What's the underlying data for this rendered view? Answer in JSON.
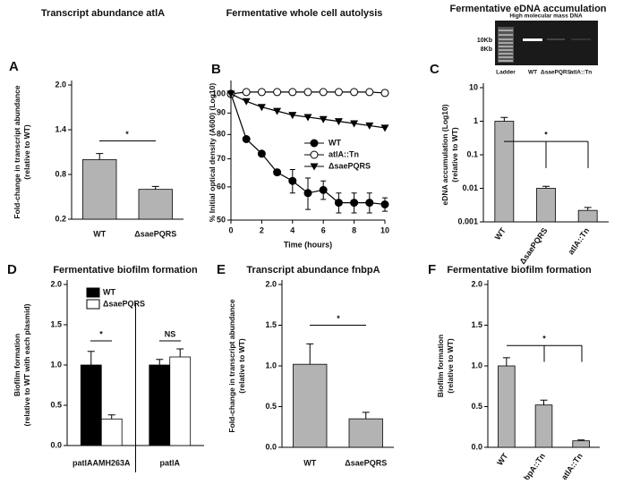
{
  "chart_data": [
    {
      "type": "bar",
      "panel": "A",
      "title": "Transcript abundance atlA",
      "y_label": [
        "Fold-change in transcript abundance",
        "(relative to WT)"
      ],
      "categories": [
        "WT",
        "ΔsaePQRS"
      ],
      "values": [
        1.0,
        0.6
      ],
      "errors": [
        0.08,
        0.04
      ],
      "color": "#b3b3b3",
      "ylim": [
        0.2,
        2.0
      ],
      "yticks": [
        0.2,
        0.8,
        1.4,
        {
          "value": 2.0,
          "label": "2.0"
        }
      ],
      "log_y": false,
      "annotations": [
        "*"
      ]
    },
    {
      "type": "line",
      "panel": "B",
      "title": "Fermentative whole cell autolysis",
      "y_label": [
        "% Initial optical density (A600) (Log10)"
      ],
      "x_label": "Time (hours)",
      "x": [
        0,
        1,
        2,
        3,
        4,
        5,
        6,
        7,
        8,
        9,
        10
      ],
      "xlim": [
        0,
        10
      ],
      "xticks": [
        0,
        2,
        4,
        6,
        8,
        10
      ],
      "ylim": [
        50,
        105
      ],
      "yticks": [
        50,
        60,
        70,
        80,
        90,
        100
      ],
      "log_y": true,
      "series": [
        {
          "name": "WT",
          "color": "#000000",
          "marker": "circle",
          "values": [
            100,
            78,
            72,
            65,
            62,
            58,
            59,
            55,
            55,
            55,
            54.5
          ],
          "errors": [
            0,
            0,
            0,
            1,
            4,
            5,
            3,
            3,
            3,
            3,
            2
          ]
        },
        {
          "name": "atlA::Tn",
          "color": "#000000",
          "marker": "circle-open",
          "values": [
            100,
            101,
            101,
            101,
            101,
            101,
            101,
            101,
            101,
            101,
            100.5
          ]
        },
        {
          "name": "ΔsaePQRS",
          "color": "#000000",
          "marker": "triangle-down",
          "values": [
            100,
            96,
            93,
            91,
            89,
            88,
            87,
            86,
            85,
            84,
            83
          ]
        }
      ]
    },
    {
      "type": "bar",
      "panel": "C",
      "title": "Fermentative eDNA accumulation",
      "y_label": [
        "eDNA accumulation (Log10)",
        "(relative to WT)"
      ],
      "categories": [
        "WT",
        "ΔsaePQRS",
        "atlA::Tn"
      ],
      "values": [
        1.0,
        0.01,
        0.0022
      ],
      "errors": [
        0.3,
        0.0015,
        0.0005
      ],
      "color": "#b3b3b3",
      "ylim": [
        0.001,
        10
      ],
      "yticks": [
        0.001,
        0.01,
        0.1,
        1,
        10
      ],
      "log_y": true,
      "annotations": [
        "*"
      ],
      "gel": {
        "title": "High molecular mass DNA",
        "size_labels": [
          "10Kb",
          "8Kb"
        ],
        "lanes": [
          "Ladder",
          "WT",
          "ΔsaePQRS",
          "atlA::Tn"
        ]
      }
    },
    {
      "type": "bar",
      "panel": "D",
      "title": "Fermentative biofilm formation",
      "y_label": [
        "Biofilm formation",
        "(relative to WT with each plasmid)"
      ],
      "categories": [
        "patlAAMH263A",
        "patlA"
      ],
      "series": [
        {
          "name": "WT",
          "color": "#000000",
          "values": [
            1.0,
            1.0
          ],
          "errors": [
            0.17,
            0.07
          ]
        },
        {
          "name": "ΔsaePQRS",
          "color": "#ffffff",
          "values": [
            0.33,
            1.1
          ],
          "errors": [
            0.05,
            0.1
          ]
        }
      ],
      "ylim": [
        0,
        2
      ],
      "yticks": [
        {
          "value": 0,
          "label": "0.0"
        },
        0.5,
        {
          "value": 1,
          "label": "1.0"
        },
        1.5,
        {
          "value": 2,
          "label": "2.0"
        }
      ],
      "log_y": false,
      "annotations": [
        "*",
        "NS"
      ]
    },
    {
      "type": "bar",
      "panel": "E",
      "title": "Transcript abundance fnbpA",
      "y_label": [
        "Fold-change in transcript abundance",
        "(relative to WT)"
      ],
      "categories": [
        "WT",
        "ΔsaePQRS"
      ],
      "values": [
        1.02,
        0.35
      ],
      "errors": [
        0.25,
        0.08
      ],
      "color": "#b3b3b3",
      "ylim": [
        0,
        2
      ],
      "yticks": [
        {
          "value": 0,
          "label": "0.0"
        },
        0.5,
        {
          "value": 1,
          "label": "1.0"
        },
        1.5,
        {
          "value": 2,
          "label": "2.0"
        }
      ],
      "log_y": false,
      "annotations": [
        "*"
      ]
    },
    {
      "type": "bar",
      "panel": "F",
      "title": "Fermentative biofilm formation",
      "y_label": [
        "Biofilm formation",
        "(relative to WT)"
      ],
      "categories": [
        "WT",
        "fnbpA::Tn",
        "atlA::Tn"
      ],
      "values": [
        1.0,
        0.52,
        0.08
      ],
      "errors": [
        0.1,
        0.06,
        0.01
      ],
      "color": "#b3b3b3",
      "ylim": [
        0,
        2
      ],
      "yticks": [
        {
          "value": 0,
          "label": "0.0"
        },
        0.5,
        {
          "value": 1,
          "label": "1.0"
        },
        1.5,
        {
          "value": 2,
          "label": "2.0"
        }
      ],
      "log_y": false,
      "annotations": [
        "*"
      ]
    }
  ]
}
